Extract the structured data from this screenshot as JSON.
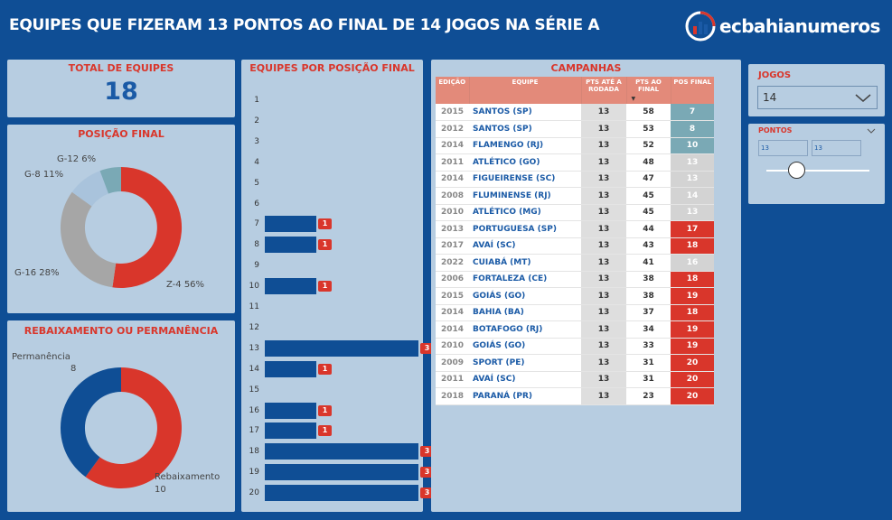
{
  "header": {
    "title": "EQUIPES QUE FIZERAM 13 PONTOS AO FINAL DE 14 JOGOS NA SÉRIE A",
    "logo_text": "ecbahianumeros"
  },
  "total": {
    "title": "TOTAL DE EQUIPES",
    "value": "18"
  },
  "posicao_final": {
    "title": "POSIÇÃO FINAL",
    "labels": {
      "g12": "G-12 6%",
      "g8": "G-8 11%",
      "g16": "G-16 28%",
      "z4": "Z-4 56%"
    }
  },
  "rebaixamento": {
    "title": "REBAIXAMENTO OU PERMANÊNCIA",
    "permanencia_label": "Permanência",
    "permanencia_value": "8",
    "rebaixamento_label": "Rebaixamento",
    "rebaixamento_value": "10"
  },
  "por_posicao": {
    "title": "EQUIPES POR POSIÇÃO FINAL",
    "rows": [
      {
        "pos": "1",
        "count": ""
      },
      {
        "pos": "2",
        "count": ""
      },
      {
        "pos": "3",
        "count": ""
      },
      {
        "pos": "4",
        "count": ""
      },
      {
        "pos": "5",
        "count": ""
      },
      {
        "pos": "6",
        "count": ""
      },
      {
        "pos": "7",
        "count": "1"
      },
      {
        "pos": "8",
        "count": "1"
      },
      {
        "pos": "9",
        "count": ""
      },
      {
        "pos": "10",
        "count": "1"
      },
      {
        "pos": "11",
        "count": ""
      },
      {
        "pos": "12",
        "count": ""
      },
      {
        "pos": "13",
        "count": "3"
      },
      {
        "pos": "14",
        "count": "1"
      },
      {
        "pos": "15",
        "count": ""
      },
      {
        "pos": "16",
        "count": "1"
      },
      {
        "pos": "17",
        "count": "1"
      },
      {
        "pos": "18",
        "count": "3"
      },
      {
        "pos": "19",
        "count": "3"
      },
      {
        "pos": "20",
        "count": "3"
      }
    ]
  },
  "campanhas": {
    "title": "CAMPANHAS",
    "headers": [
      "EDIÇÃO",
      "EQUIPE",
      "PTS ATÉ A RODADA",
      "PTS AO FINAL",
      "POS FINAL"
    ],
    "rows": [
      [
        "2015",
        "SANTOS (SP)",
        "13",
        "58",
        "7"
      ],
      [
        "2012",
        "SANTOS (SP)",
        "13",
        "53",
        "8"
      ],
      [
        "2014",
        "FLAMENGO (RJ)",
        "13",
        "52",
        "10"
      ],
      [
        "2011",
        "ATLÉTICO (GO)",
        "13",
        "48",
        "13"
      ],
      [
        "2014",
        "FIGUEIRENSE (SC)",
        "13",
        "47",
        "13"
      ],
      [
        "2008",
        "FLUMINENSE (RJ)",
        "13",
        "45",
        "14"
      ],
      [
        "2010",
        "ATLÉTICO (MG)",
        "13",
        "45",
        "13"
      ],
      [
        "2013",
        "PORTUGUESA (SP)",
        "13",
        "44",
        "17"
      ],
      [
        "2017",
        "AVAÍ (SC)",
        "13",
        "43",
        "18"
      ],
      [
        "2022",
        "CUIABÁ (MT)",
        "13",
        "41",
        "16"
      ],
      [
        "2006",
        "FORTALEZA (CE)",
        "13",
        "38",
        "18"
      ],
      [
        "2015",
        "GOIÁS (GO)",
        "13",
        "38",
        "19"
      ],
      [
        "2014",
        "BAHIA (BA)",
        "13",
        "37",
        "18"
      ],
      [
        "2014",
        "BOTAFOGO (RJ)",
        "13",
        "34",
        "19"
      ],
      [
        "2010",
        "GOIÁS (GO)",
        "13",
        "33",
        "19"
      ],
      [
        "2009",
        "SPORT (PE)",
        "13",
        "31",
        "20"
      ],
      [
        "2011",
        "AVAÍ (SC)",
        "13",
        "31",
        "20"
      ],
      [
        "2018",
        "PARANÁ (PR)",
        "13",
        "23",
        "20"
      ]
    ]
  },
  "jogos": {
    "title": "JOGOS",
    "value": "14"
  },
  "pontos": {
    "title": "PONTOS",
    "min": "13",
    "max": "13"
  },
  "colors": {
    "red": "#d9362b",
    "teal": "#7aa9b5",
    "gray": "#d3d3d3",
    "blue": "#0f4e95"
  }
}
